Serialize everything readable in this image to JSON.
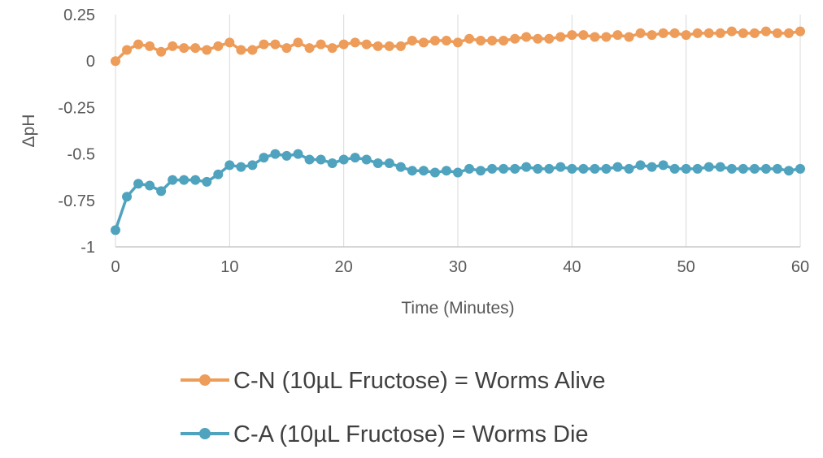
{
  "chart_data": {
    "type": "line",
    "title": "",
    "xlabel": "Time (Minutes)",
    "ylabel": "ΔpH",
    "xlim": [
      0,
      60
    ],
    "ylim": [
      -1,
      0.25
    ],
    "x_ticks": [
      0,
      10,
      20,
      30,
      40,
      50,
      60
    ],
    "y_ticks": [
      0.25,
      0,
      -0.25,
      -0.5,
      -0.75,
      -1
    ],
    "x_tick_labels": [
      "0",
      "10",
      "20",
      "30",
      "40",
      "50",
      "60"
    ],
    "y_tick_labels": [
      "0.25",
      "0",
      "-0.25",
      "-0.5",
      "-0.75",
      "-1"
    ],
    "grid": "vertical",
    "legend_position": "bottom",
    "x": [
      0,
      1,
      2,
      3,
      4,
      5,
      6,
      7,
      8,
      9,
      10,
      11,
      12,
      13,
      14,
      15,
      16,
      17,
      18,
      19,
      20,
      21,
      22,
      23,
      24,
      25,
      26,
      27,
      28,
      29,
      30,
      31,
      32,
      33,
      34,
      35,
      36,
      37,
      38,
      39,
      40,
      41,
      42,
      43,
      44,
      45,
      46,
      47,
      48,
      49,
      50,
      51,
      52,
      53,
      54,
      55,
      56,
      57,
      58,
      59,
      60
    ],
    "series": [
      {
        "name": "C-N (10µL Fructose) = Worms  Alive",
        "color": "#ED9C59",
        "values": [
          0.0,
          0.06,
          0.09,
          0.08,
          0.05,
          0.08,
          0.07,
          0.07,
          0.06,
          0.08,
          0.1,
          0.06,
          0.06,
          0.09,
          0.09,
          0.07,
          0.1,
          0.07,
          0.09,
          0.07,
          0.09,
          0.1,
          0.09,
          0.08,
          0.08,
          0.08,
          0.11,
          0.1,
          0.11,
          0.11,
          0.1,
          0.12,
          0.11,
          0.11,
          0.11,
          0.12,
          0.13,
          0.12,
          0.12,
          0.13,
          0.14,
          0.14,
          0.13,
          0.13,
          0.14,
          0.13,
          0.15,
          0.14,
          0.15,
          0.15,
          0.14,
          0.15,
          0.15,
          0.15,
          0.16,
          0.15,
          0.15,
          0.16,
          0.15,
          0.15,
          0.16
        ]
      },
      {
        "name": "C-A (10µL Fructose) = Worms  Die",
        "color": "#4FA3BE",
        "values": [
          -0.91,
          -0.73,
          -0.66,
          -0.67,
          -0.7,
          -0.64,
          -0.64,
          -0.64,
          -0.65,
          -0.61,
          -0.56,
          -0.57,
          -0.56,
          -0.52,
          -0.5,
          -0.51,
          -0.5,
          -0.53,
          -0.53,
          -0.55,
          -0.53,
          -0.52,
          -0.53,
          -0.55,
          -0.55,
          -0.57,
          -0.59,
          -0.59,
          -0.6,
          -0.59,
          -0.6,
          -0.58,
          -0.59,
          -0.58,
          -0.58,
          -0.58,
          -0.57,
          -0.58,
          -0.58,
          -0.57,
          -0.58,
          -0.58,
          -0.58,
          -0.58,
          -0.57,
          -0.58,
          -0.56,
          -0.57,
          -0.56,
          -0.58,
          -0.58,
          -0.58,
          -0.57,
          -0.57,
          -0.58,
          -0.58,
          -0.58,
          -0.58,
          -0.58,
          -0.59,
          -0.58
        ]
      }
    ]
  }
}
